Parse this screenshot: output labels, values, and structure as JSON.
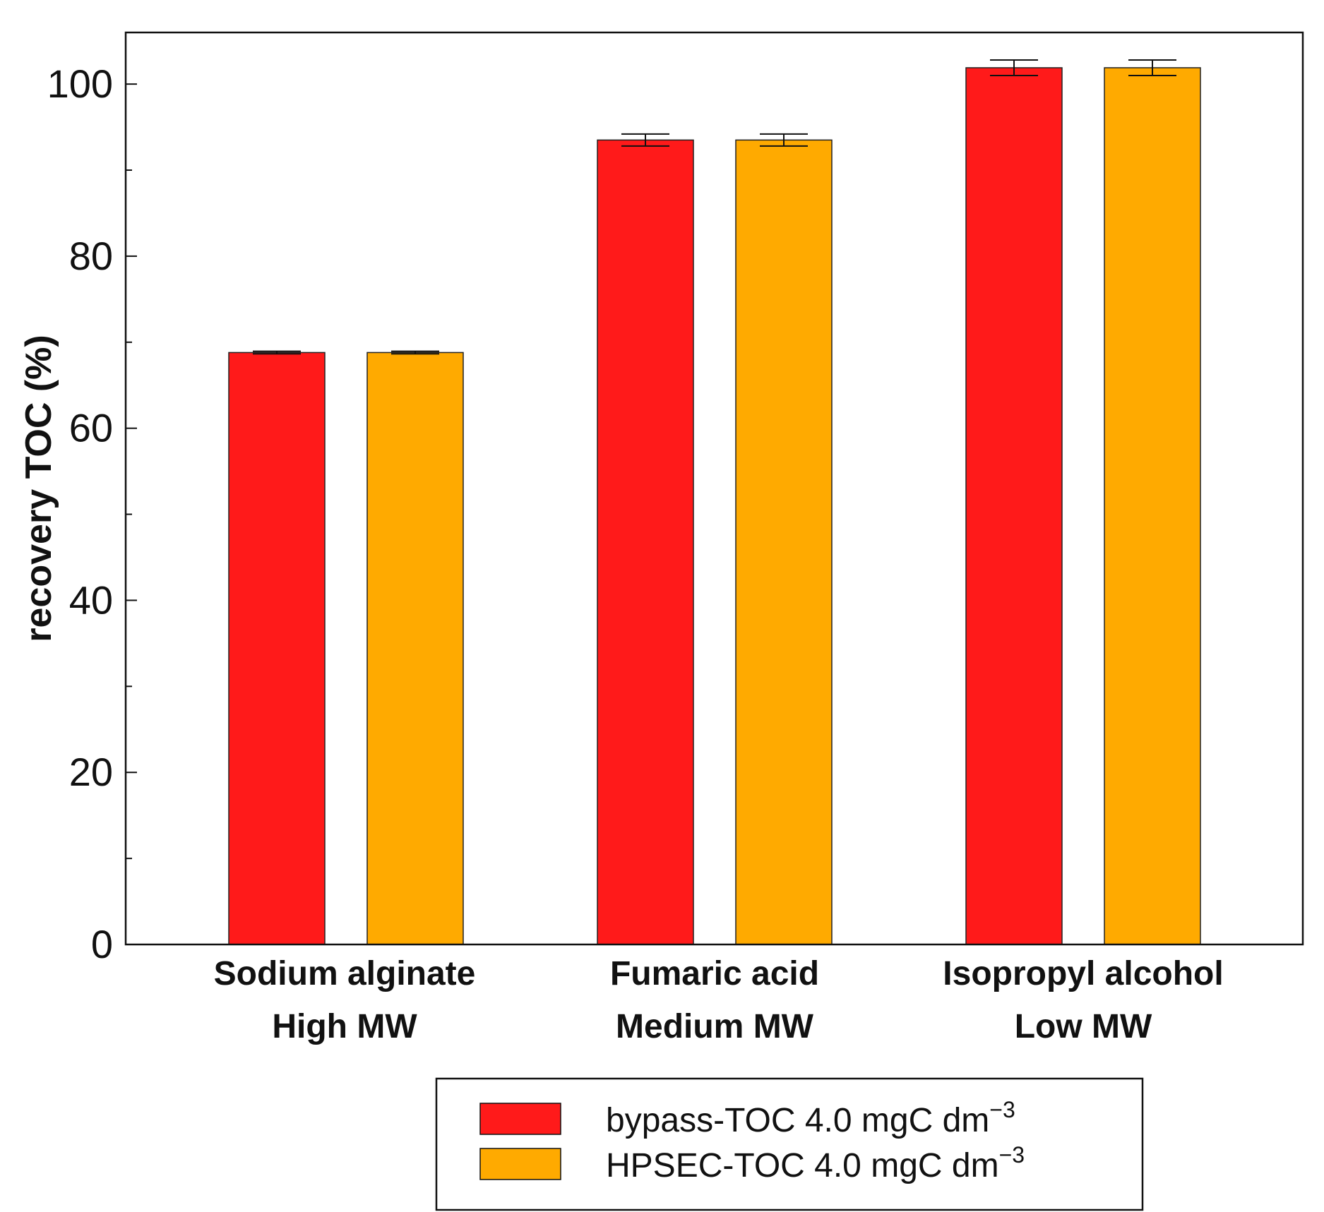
{
  "chart_data": {
    "type": "bar",
    "title": "",
    "xlabel": "",
    "ylabel": "recovery TOC (%)",
    "ylim": [
      0,
      106
    ],
    "yticks": [
      0,
      20,
      40,
      60,
      80,
      100
    ],
    "categories": [
      {
        "line1": "Sodium alginate",
        "line2": "High MW"
      },
      {
        "line1": "Fumaric acid",
        "line2": "Medium MW"
      },
      {
        "line1": "Isopropyl alcohol",
        "line2": "Low MW"
      }
    ],
    "series": [
      {
        "name": "bypass-TOC 4.0 mgC dm",
        "superscript": "−3",
        "color": "#ff1a1a",
        "values": [
          68.8,
          93.5,
          101.9
        ],
        "errors": [
          0.15,
          0.7,
          0.9
        ]
      },
      {
        "name": "HPSEC-TOC 4.0 mgC dm",
        "superscript": "−3",
        "color": "#ffaa00",
        "values": [
          68.8,
          93.5,
          101.9
        ],
        "errors": [
          0.15,
          0.7,
          0.9
        ]
      }
    ],
    "legend_position": "bottom-center",
    "grid": false
  }
}
